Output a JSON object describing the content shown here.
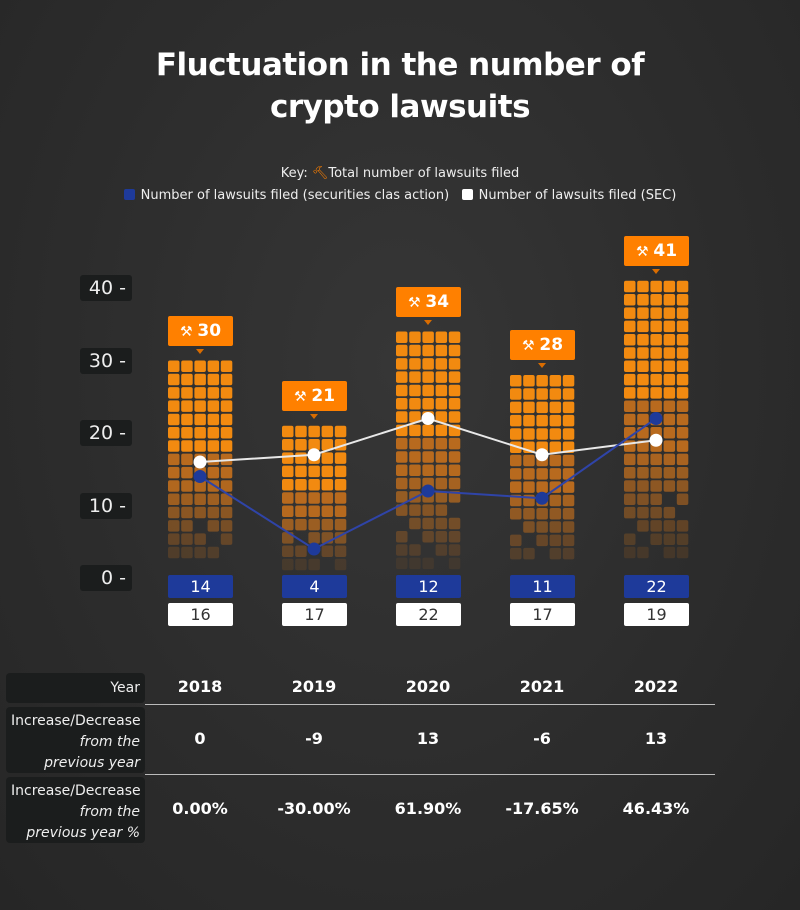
{
  "title_line1": "Fluctuation in the number of",
  "title_line2": "crypto lawsuits",
  "key": {
    "prefix": "Key:",
    "total_label": "Total number of lawsuits filed",
    "class_action_label": "Number of lawsuits filed (securities clas action)",
    "sec_label": "Number of lawsuits filed (SEC)",
    "total_icon": "gavel-icon"
  },
  "colors": {
    "total": "#ff8000",
    "class_action": "#1e3a9a",
    "sec": "#ffffff",
    "background": "#2c2c2c"
  },
  "chart_data": {
    "type": "bar",
    "title": "Fluctuation in the number of crypto lawsuits",
    "categories": [
      "2018",
      "2019",
      "2020",
      "2021",
      "2022"
    ],
    "ylim": [
      0,
      40
    ],
    "yticks": [
      "0 -",
      "10 -",
      "20 -",
      "30 -",
      "40 -"
    ],
    "ytick_values": [
      0,
      10,
      20,
      30,
      40
    ],
    "series": [
      {
        "name": "Total number of lawsuits filed",
        "type": "bar",
        "values": [
          30,
          21,
          34,
          28,
          41
        ]
      },
      {
        "name": "Number of lawsuits filed (securities clas action)",
        "type": "line",
        "values": [
          14,
          4,
          12,
          11,
          22
        ]
      },
      {
        "name": "Number of lawsuits filed (SEC)",
        "type": "line",
        "values": [
          16,
          17,
          22,
          17,
          19
        ]
      }
    ]
  },
  "table": {
    "header_label": "Year",
    "years": [
      "2018",
      "2019",
      "2020",
      "2021",
      "2022"
    ],
    "rows": [
      {
        "label_main": "Increase/Decrease",
        "label_italic1": "from the",
        "label_italic2": "previous year",
        "values": [
          "0",
          "-9",
          "13",
          "-6",
          "13"
        ]
      },
      {
        "label_main": "Increase/Decrease",
        "label_italic1": "from the",
        "label_italic2": "previous year %",
        "values": [
          "0.00%",
          "-30.00%",
          "61.90%",
          "-17.65%",
          "46.43%"
        ]
      }
    ]
  }
}
